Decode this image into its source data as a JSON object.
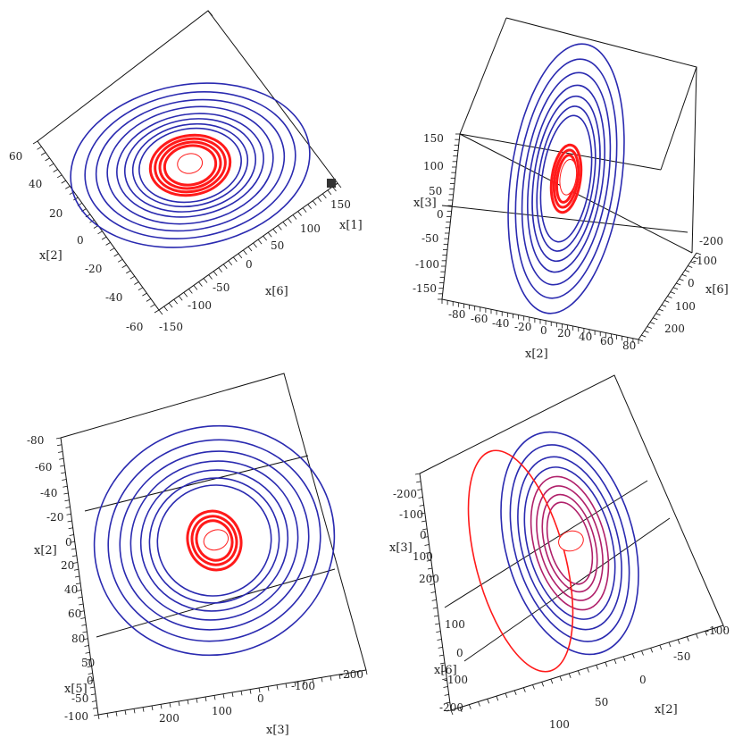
{
  "colors": {
    "outer_orbit": "#2a2ab0",
    "inner_orbit": "#ff1a1a",
    "mixed_orbit": "#b0206a",
    "frame": "#111111"
  },
  "chart_data": [
    {
      "type": "line",
      "subtype": "3d-trajectory",
      "axes": {
        "horizontal": {
          "label": "x[1]",
          "ticks": [
            "150",
            "100",
            "50",
            "0",
            "-50",
            "-100",
            "-150"
          ]
        },
        "depth": {
          "label": "x[6]",
          "ticks": [
            "150",
            "100",
            "50",
            "0",
            "-50",
            "-100",
            "-150"
          ]
        },
        "vertical": {
          "label": "x[2]",
          "ticks": [
            "60",
            "40",
            "20",
            "0",
            "-20",
            "-40",
            "-60"
          ]
        }
      },
      "xlim": [
        -150,
        150
      ],
      "ylim": [
        -60,
        60
      ],
      "series": [
        {
          "color": "#2a2ab0",
          "rings": [
            {
              "rx": 150,
              "ry": 95
            },
            {
              "rx": 132,
              "ry": 85
            },
            {
              "rx": 118,
              "ry": 76
            },
            {
              "rx": 104,
              "ry": 68
            },
            {
              "rx": 92,
              "ry": 60
            },
            {
              "rx": 82,
              "ry": 54
            },
            {
              "rx": 72,
              "ry": 48
            },
            {
              "rx": 64,
              "ry": 43
            }
          ]
        },
        {
          "color": "#ff1a1a",
          "rings": [
            {
              "rx": 50,
              "ry": 35
            },
            {
              "rx": 44,
              "ry": 31
            },
            {
              "rx": 38,
              "ry": 27
            },
            {
              "rx": 32,
              "ry": 23
            }
          ]
        }
      ]
    },
    {
      "type": "line",
      "subtype": "3d-trajectory",
      "axes": {
        "vertical": {
          "label": "x[3]",
          "ticks": [
            "150",
            "100",
            "50",
            "0",
            "-50",
            "-100",
            "-150"
          ]
        },
        "horizontal": {
          "label": "x[2]",
          "ticks": [
            "-80",
            "-60",
            "-40",
            "-20",
            "0",
            "20",
            "40",
            "60",
            "80"
          ]
        },
        "depth": {
          "label": "x[6]",
          "ticks": [
            "-200",
            "-100",
            "0",
            "100",
            "200"
          ]
        }
      },
      "xlim": [
        -80,
        80
      ],
      "ylim": [
        -150,
        150
      ],
      "series": [
        {
          "color": "#2a2ab0",
          "rings": [
            {
              "rx": 62,
              "ry": 160
            },
            {
              "rx": 54,
              "ry": 142
            },
            {
              "rx": 47,
              "ry": 126
            },
            {
              "rx": 41,
              "ry": 111
            },
            {
              "rx": 36,
              "ry": 98
            },
            {
              "rx": 31,
              "ry": 86
            },
            {
              "rx": 27,
              "ry": 75
            }
          ]
        },
        {
          "color": "#ff1a1a",
          "rings": [
            {
              "rx": 16,
              "ry": 40
            },
            {
              "rx": 13,
              "ry": 34
            },
            {
              "rx": 10,
              "ry": 28
            }
          ]
        }
      ]
    },
    {
      "type": "line",
      "subtype": "3d-trajectory",
      "axes": {
        "vertical": {
          "label": "x[2]",
          "ticks": [
            "-80",
            "-60",
            "-40",
            "-20",
            "0",
            "20",
            "40",
            "60",
            "80"
          ]
        },
        "depth": {
          "label": "x[5]",
          "ticks": [
            "50",
            "0",
            "-50",
            "-100"
          ]
        },
        "horizontal": {
          "label": "x[3]",
          "ticks": [
            "200",
            "100",
            "0",
            "-100",
            "-200"
          ]
        }
      },
      "xlim": [
        -200,
        200
      ],
      "ylim": [
        -80,
        80
      ],
      "series": [
        {
          "color": "#2a2ab0",
          "rings": [
            {
              "rx": 165,
              "ry": 130
            },
            {
              "rx": 146,
              "ry": 114
            },
            {
              "rx": 130,
              "ry": 101
            },
            {
              "rx": 115,
              "ry": 90
            },
            {
              "rx": 101,
              "ry": 80
            },
            {
              "rx": 89,
              "ry": 71
            },
            {
              "rx": 78,
              "ry": 63
            }
          ]
        },
        {
          "color": "#ff1a1a",
          "rings": [
            {
              "rx": 36,
              "ry": 34
            },
            {
              "rx": 30,
              "ry": 28
            },
            {
              "rx": 24,
              "ry": 23
            }
          ]
        }
      ]
    },
    {
      "type": "line",
      "subtype": "3d-trajectory",
      "axes": {
        "vertical": {
          "label": "x[3]",
          "ticks": [
            "-200",
            "-100",
            "0",
            "100",
            "200"
          ]
        },
        "depth": {
          "label": "x[6]",
          "ticks": [
            "100",
            "0",
            "-100",
            "-200"
          ]
        },
        "horizontal": {
          "label": "x[2]",
          "ticks": [
            "100",
            "50",
            "0",
            "-50",
            "-100"
          ]
        }
      },
      "xlim": [
        -100,
        100
      ],
      "ylim": [
        -200,
        200
      ],
      "series": [
        {
          "color": "#2a2ab0",
          "rings": [
            {
              "rx": 72,
              "ry": 130
            },
            {
              "rx": 62,
              "ry": 115
            },
            {
              "rx": 54,
              "ry": 101
            },
            {
              "rx": 47,
              "ry": 89
            }
          ]
        },
        {
          "color": "#b0206a",
          "rings": [
            {
              "rx": 40,
              "ry": 78
            },
            {
              "rx": 34,
              "ry": 67
            },
            {
              "rx": 28,
              "ry": 57
            },
            {
              "rx": 23,
              "ry": 48
            }
          ]
        },
        {
          "color": "#ff1a1a",
          "rings": [
            {
              "rx": 50,
              "ry": 130
            }
          ]
        }
      ]
    }
  ]
}
